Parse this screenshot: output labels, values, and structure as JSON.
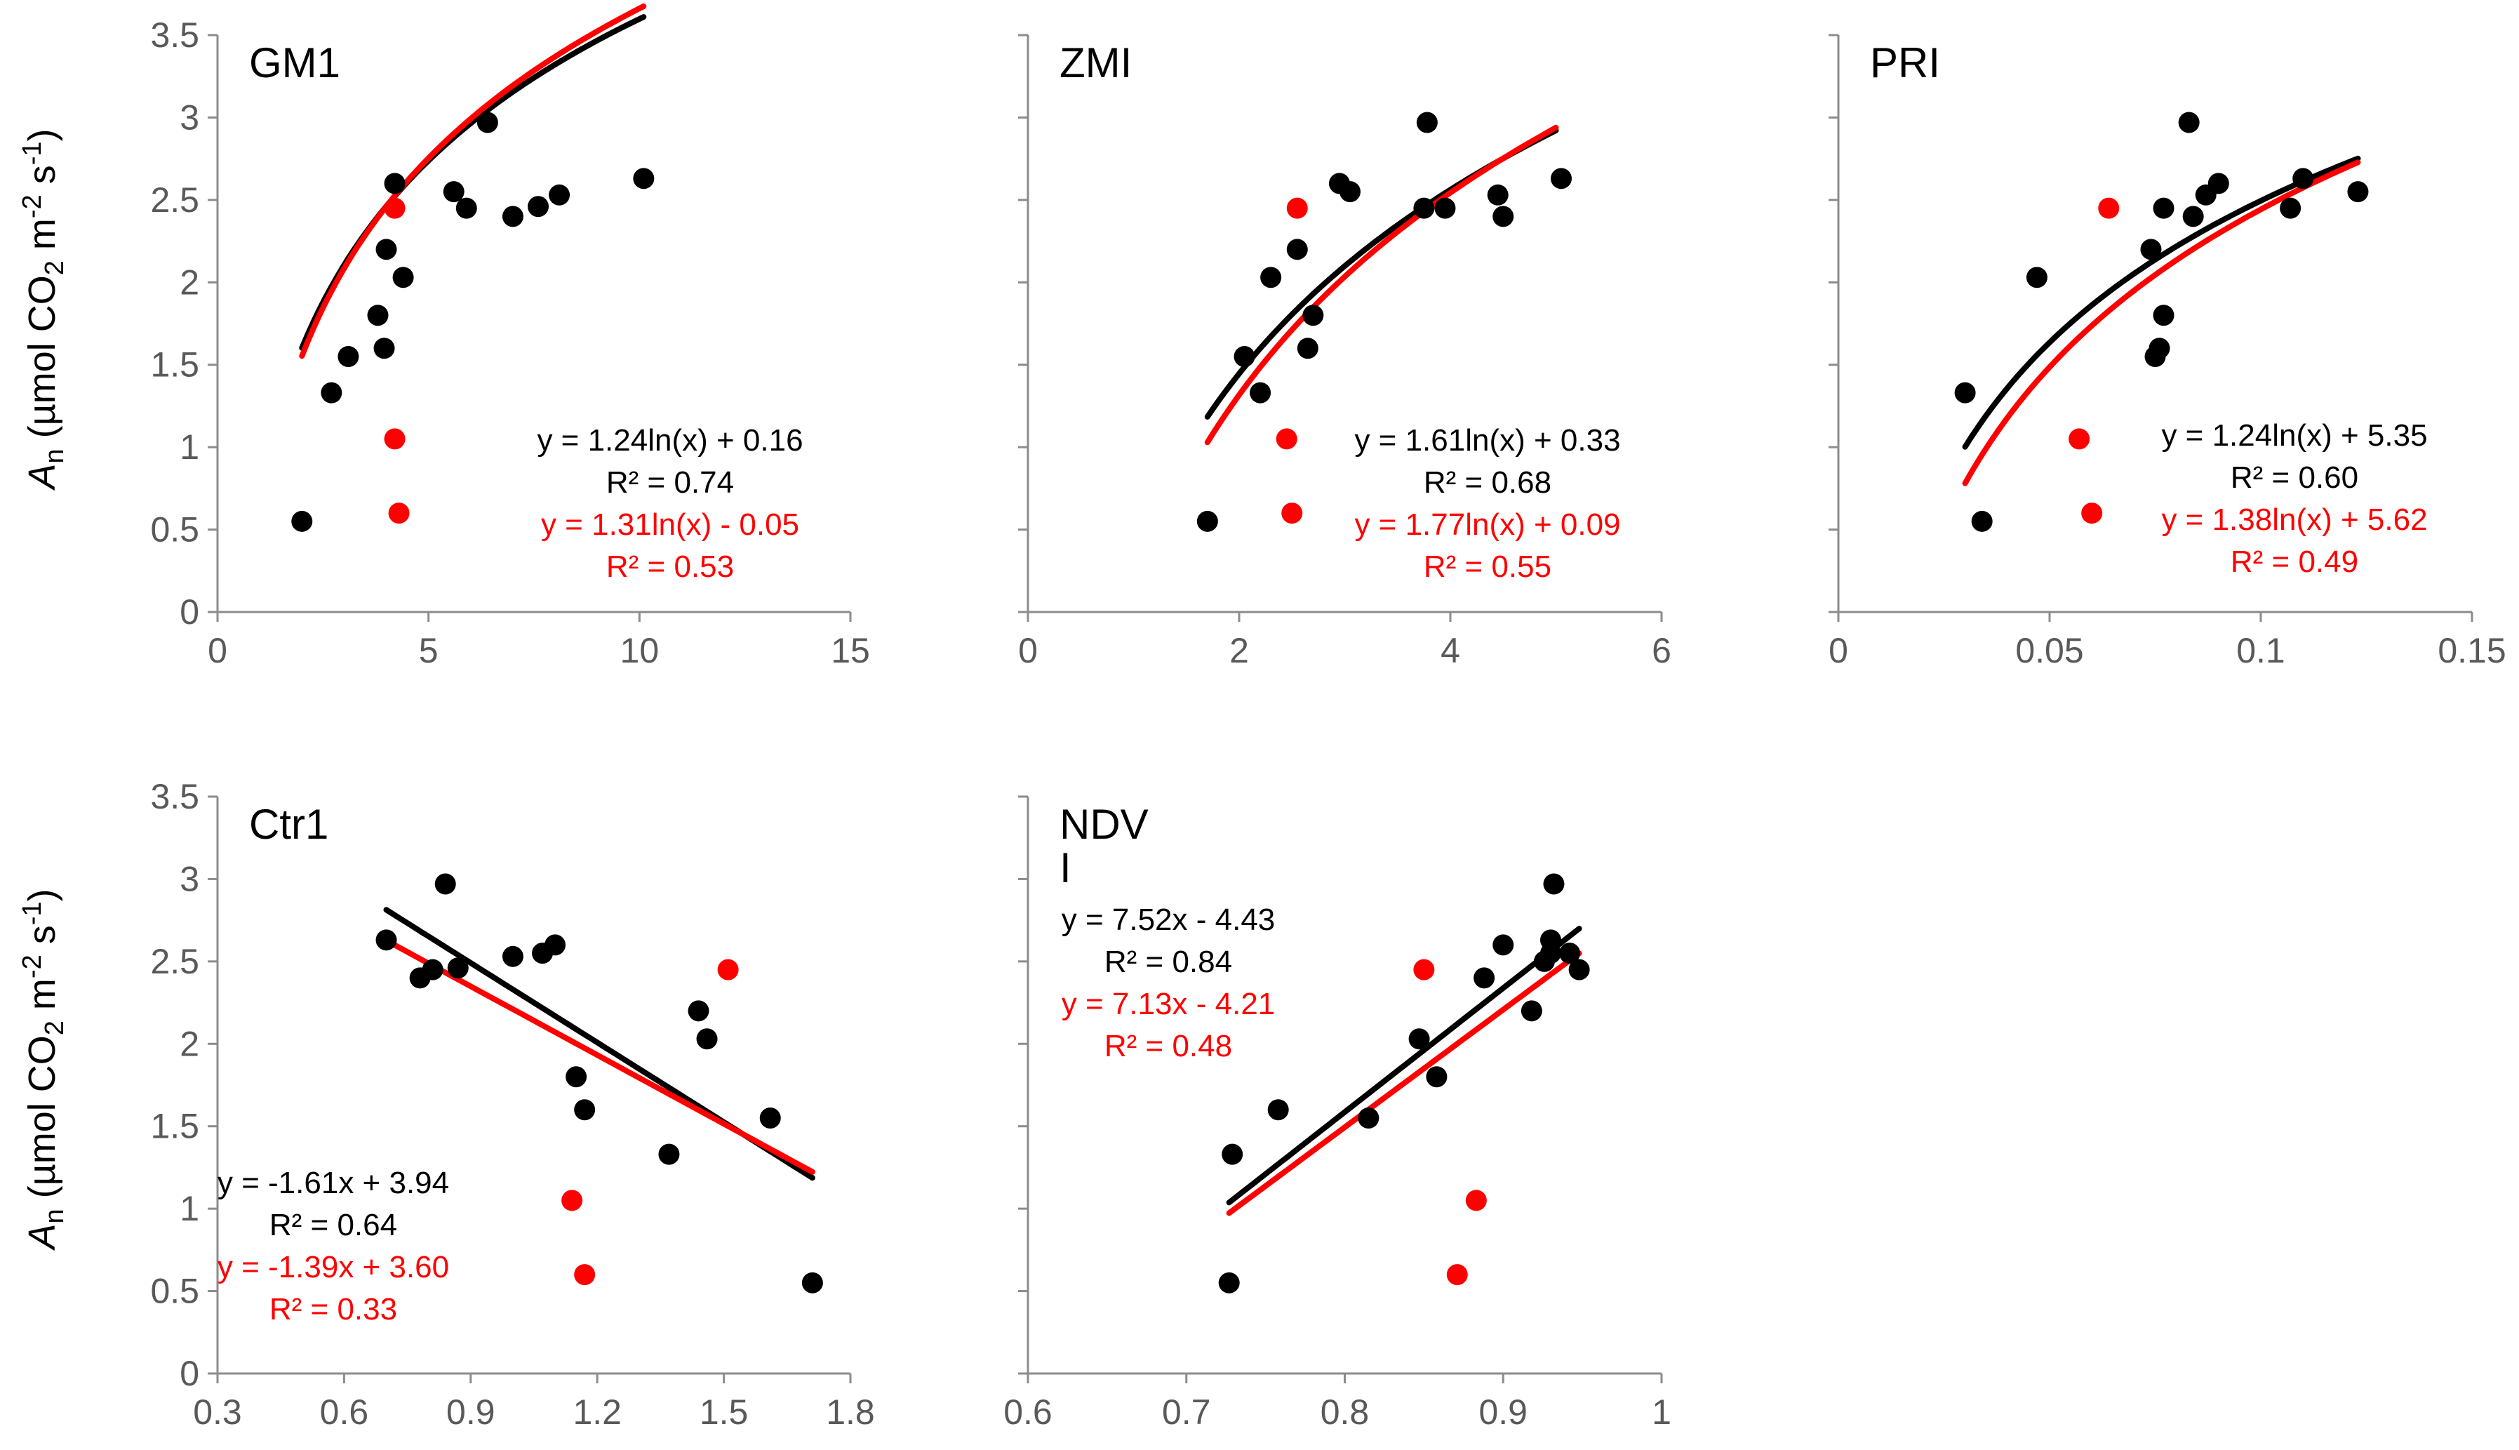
{
  "ylabel": {
    "main": "A",
    "sub": "n",
    "pre": " (µmol CO",
    "co2sub": "2",
    "mid": " m",
    "msup": "-2",
    "s": " s",
    "ssup": "-1",
    "post": ")"
  },
  "colors": {
    "black": "#000000",
    "red": "#ff0000",
    "axis": "#8c8c8c",
    "tick_text": "#595959"
  },
  "chart_data": [
    {
      "id": "gm1",
      "type": "scatter",
      "title": "GM1",
      "xlim": [
        0,
        15
      ],
      "xticks": [
        "0",
        "5",
        "10",
        "15"
      ],
      "ylim": [
        0,
        3.5
      ],
      "yticks": [
        "0",
        "0.5",
        "1",
        "1.5",
        "2",
        "2.5",
        "3",
        "3.5"
      ],
      "show_ytick_labels": true,
      "series": [
        {
          "name": "all",
          "color": "#000000",
          "points": [
            [
              2.0,
              0.55
            ],
            [
              2.7,
              1.33
            ],
            [
              3.1,
              1.55
            ],
            [
              3.8,
              1.8
            ],
            [
              3.95,
              1.6
            ],
            [
              4.0,
              2.2
            ],
            [
              4.2,
              2.6
            ],
            [
              4.4,
              2.03
            ],
            [
              5.6,
              2.55
            ],
            [
              5.9,
              2.45
            ],
            [
              6.4,
              2.97
            ],
            [
              7.0,
              2.4
            ],
            [
              7.6,
              2.46
            ],
            [
              8.1,
              2.53
            ],
            [
              10.1,
              2.63
            ]
          ]
        },
        {
          "name": "outliers",
          "color": "#ff0000",
          "points": [
            [
              4.2,
              2.45
            ],
            [
              4.2,
              1.05
            ],
            [
              4.3,
              0.6
            ]
          ]
        }
      ],
      "fits": [
        {
          "color": "#000000",
          "kind": "log",
          "a": 1.24,
          "b": 0.16,
          "scale": 1.6,
          "x_range": [
            2.0,
            10.1
          ],
          "equation": "y = 1.24ln(x) + 0.16",
          "r2": "R² = 0.74"
        },
        {
          "color": "#ff0000",
          "kind": "log",
          "a": 1.31,
          "b": -0.05,
          "scale": 1.7,
          "x_range": [
            2.0,
            10.1
          ],
          "equation": "y = 1.31ln(x) - 0.05",
          "r2": "R² = 0.53"
        }
      ]
    },
    {
      "id": "zmi",
      "type": "scatter",
      "title": "ZMI",
      "xlim": [
        0,
        6
      ],
      "xticks": [
        "0",
        "2",
        "4",
        "6"
      ],
      "ylim": [
        0,
        3.5
      ],
      "yticks": [
        "0",
        "0.5",
        "1",
        "1.5",
        "2",
        "2.5",
        "3",
        "3.5"
      ],
      "show_ytick_labels": false,
      "series": [
        {
          "name": "all",
          "color": "#000000",
          "points": [
            [
              1.7,
              0.55
            ],
            [
              2.05,
              1.55
            ],
            [
              2.2,
              1.33
            ],
            [
              2.3,
              2.03
            ],
            [
              2.55,
              2.2
            ],
            [
              2.65,
              1.6
            ],
            [
              2.7,
              1.8
            ],
            [
              2.95,
              2.6
            ],
            [
              3.05,
              2.55
            ],
            [
              3.75,
              2.45
            ],
            [
              3.78,
              2.97
            ],
            [
              3.95,
              2.45
            ],
            [
              4.45,
              2.53
            ],
            [
              4.5,
              2.4
            ],
            [
              5.05,
              2.63
            ]
          ]
        },
        {
          "name": "outliers",
          "color": "#ff0000",
          "points": [
            [
              2.55,
              2.45
            ],
            [
              2.45,
              1.05
            ],
            [
              2.5,
              0.6
            ]
          ]
        }
      ],
      "fits": [
        {
          "color": "#000000",
          "kind": "log",
          "a": 1.61,
          "b": 0.33,
          "scale": 1.0,
          "x_range": [
            1.7,
            5.0
          ],
          "equation": "y = 1.61ln(x) + 0.33",
          "r2": "R² = 0.68"
        },
        {
          "color": "#ff0000",
          "kind": "log",
          "a": 1.77,
          "b": 0.09,
          "scale": 1.0,
          "x_range": [
            1.7,
            5.0
          ],
          "equation": "y = 1.77ln(x) + 0.09",
          "r2": "R² = 0.55"
        }
      ]
    },
    {
      "id": "pri",
      "type": "scatter",
      "title": "PRI",
      "xlim": [
        0,
        0.15
      ],
      "xticks": [
        "0",
        "0.05",
        "0.1",
        "0.15"
      ],
      "ylim": [
        0,
        3.5
      ],
      "yticks": [
        "0",
        "0.5",
        "1",
        "1.5",
        "2",
        "2.5",
        "3",
        "3.5"
      ],
      "show_ytick_labels": false,
      "series": [
        {
          "name": "all",
          "color": "#000000",
          "points": [
            [
              0.03,
              1.33
            ],
            [
              0.034,
              0.55
            ],
            [
              0.047,
              2.03
            ],
            [
              0.074,
              2.2
            ],
            [
              0.075,
              1.55
            ],
            [
              0.076,
              1.6
            ],
            [
              0.077,
              2.45
            ],
            [
              0.077,
              1.8
            ],
            [
              0.083,
              2.97
            ],
            [
              0.084,
              2.4
            ],
            [
              0.087,
              2.53
            ],
            [
              0.09,
              2.6
            ],
            [
              0.107,
              2.45
            ],
            [
              0.11,
              2.63
            ],
            [
              0.123,
              2.55
            ]
          ]
        },
        {
          "name": "outliers",
          "color": "#ff0000",
          "points": [
            [
              0.064,
              2.45
            ],
            [
              0.057,
              1.05
            ],
            [
              0.06,
              0.6
            ]
          ]
        }
      ],
      "fits": [
        {
          "color": "#000000",
          "kind": "log",
          "a": 1.24,
          "b": 5.35,
          "scale": 1.0,
          "x_range": [
            0.03,
            0.123
          ],
          "equation": "y = 1.24ln(x) + 5.35",
          "r2": "R² = 0.60"
        },
        {
          "color": "#ff0000",
          "kind": "log",
          "a": 1.38,
          "b": 5.62,
          "scale": 1.0,
          "x_range": [
            0.03,
            0.123
          ],
          "equation": "y = 1.38ln(x) + 5.62",
          "r2": "R² = 0.49"
        }
      ]
    },
    {
      "id": "ctr1",
      "type": "scatter",
      "title": "Ctr1",
      "xlim": [
        0.3,
        1.8
      ],
      "xticks": [
        "0.3",
        "0.6",
        "0.9",
        "1.2",
        "1.5",
        "1.8"
      ],
      "ylim": [
        0,
        3.5
      ],
      "yticks": [
        "0",
        "0.5",
        "1",
        "1.5",
        "2",
        "2.5",
        "3",
        "3.5"
      ],
      "show_ytick_labels": true,
      "series": [
        {
          "name": "all",
          "color": "#000000",
          "points": [
            [
              0.7,
              2.63
            ],
            [
              0.78,
              2.4
            ],
            [
              0.81,
              2.45
            ],
            [
              0.84,
              2.97
            ],
            [
              0.87,
              2.46
            ],
            [
              1.0,
              2.53
            ],
            [
              1.07,
              2.55
            ],
            [
              1.1,
              2.6
            ],
            [
              1.15,
              1.8
            ],
            [
              1.17,
              1.6
            ],
            [
              1.37,
              1.33
            ],
            [
              1.44,
              2.2
            ],
            [
              1.46,
              2.03
            ],
            [
              1.61,
              1.55
            ],
            [
              1.71,
              0.55
            ]
          ]
        },
        {
          "name": "outliers",
          "color": "#ff0000",
          "points": [
            [
              1.51,
              2.45
            ],
            [
              1.14,
              1.05
            ],
            [
              1.17,
              0.6
            ]
          ]
        }
      ],
      "fits": [
        {
          "color": "#000000",
          "kind": "linear",
          "a": -1.61,
          "b": 3.94,
          "x_range": [
            0.7,
            1.71
          ],
          "equation": "y = -1.61x + 3.94",
          "r2": "R² = 0.64"
        },
        {
          "color": "#ff0000",
          "kind": "linear",
          "a": -1.39,
          "b": 3.6,
          "x_range": [
            0.7,
            1.71
          ],
          "equation": "y = -1.39x + 3.60",
          "r2": "R² = 0.33"
        }
      ]
    },
    {
      "id": "ndvi",
      "type": "scatter",
      "title": "NDV\nI",
      "xlim": [
        0.6,
        1.0
      ],
      "xticks": [
        "0.6",
        "0.7",
        "0.8",
        "0.9",
        "1"
      ],
      "ylim": [
        0,
        3.5
      ],
      "yticks": [
        "0",
        "0.5",
        "1",
        "1.5",
        "2",
        "2.5",
        "3",
        "3.5"
      ],
      "show_ytick_labels": false,
      "series": [
        {
          "name": "all",
          "color": "#000000",
          "points": [
            [
              0.727,
              0.55
            ],
            [
              0.729,
              1.33
            ],
            [
              0.758,
              1.6
            ],
            [
              0.815,
              1.55
            ],
            [
              0.847,
              2.03
            ],
            [
              0.858,
              1.8
            ],
            [
              0.888,
              2.4
            ],
            [
              0.9,
              2.6
            ],
            [
              0.918,
              2.2
            ],
            [
              0.926,
              2.5
            ],
            [
              0.93,
              2.55
            ],
            [
              0.93,
              2.63
            ],
            [
              0.932,
              2.97
            ],
            [
              0.942,
              2.55
            ],
            [
              0.948,
              2.45
            ]
          ]
        },
        {
          "name": "outliers",
          "color": "#ff0000",
          "points": [
            [
              0.85,
              2.45
            ],
            [
              0.883,
              1.05
            ],
            [
              0.871,
              0.6
            ]
          ]
        }
      ],
      "fits": [
        {
          "color": "#000000",
          "kind": "linear",
          "a": 7.52,
          "b": -4.43,
          "x_range": [
            0.727,
            0.948
          ],
          "equation": "y = 7.52x - 4.43",
          "r2": "R² = 0.84"
        },
        {
          "color": "#ff0000",
          "kind": "linear",
          "a": 7.13,
          "b": -4.21,
          "x_range": [
            0.727,
            0.948
          ],
          "equation": "y = 7.13x - 4.21",
          "r2": "R² = 0.48"
        }
      ]
    }
  ]
}
